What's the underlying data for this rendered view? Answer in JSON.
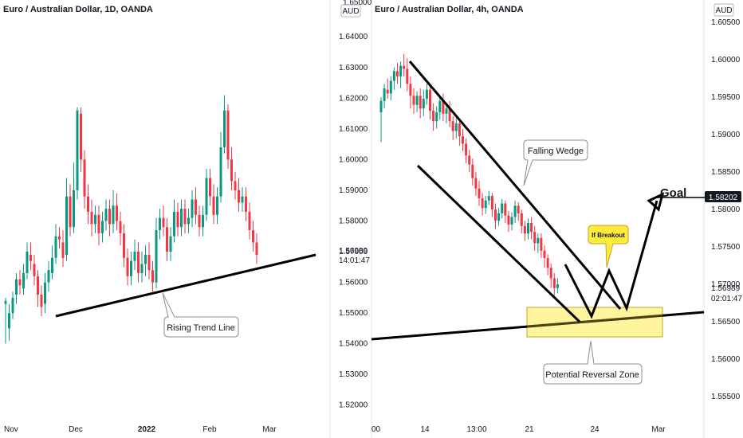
{
  "colors": {
    "up": "#089981",
    "down": "#f23645",
    "line": "#000000",
    "zone_fill": "#fff59d",
    "zone_stroke": "#c9a227",
    "callout_yellow": "#ffeb3b",
    "label_bg": "#131722"
  },
  "chart_data": [
    {
      "type": "candlestick",
      "title": "Euro / Australian Dollar, 1D, OANDA",
      "currency": "AUD",
      "ylim": [
        1.515,
        1.652
      ],
      "y_ticks": [
        "1.64000",
        "1.63000",
        "1.62000",
        "1.61000",
        "1.60000",
        "1.59000",
        "1.58000",
        "1.57000",
        "1.56000",
        "1.55000",
        "1.54000",
        "1.53000",
        "1.52000"
      ],
      "y_ticks_top_partial": "1.65000",
      "x_ticks": [
        "Nov",
        "Dec",
        "2022",
        "Feb",
        "Mar"
      ],
      "last_price_label": "1.56989",
      "countdown_label": "14:01:47",
      "candles": [
        [
          1.553,
          1.554,
          1.555,
          1.54
        ],
        [
          1.545,
          1.55,
          1.553,
          1.541
        ],
        [
          1.55,
          1.555,
          1.557,
          1.548
        ],
        [
          1.556,
          1.561,
          1.563,
          1.553
        ],
        [
          1.561,
          1.559,
          1.564,
          1.556
        ],
        [
          1.558,
          1.563,
          1.566,
          1.556
        ],
        [
          1.563,
          1.57,
          1.573,
          1.561
        ],
        [
          1.569,
          1.567,
          1.573,
          1.564
        ],
        [
          1.566,
          1.562,
          1.569,
          1.559
        ],
        [
          1.562,
          1.556,
          1.564,
          1.552
        ],
        [
          1.556,
          1.552,
          1.559,
          1.549
        ],
        [
          1.553,
          1.56,
          1.563,
          1.55
        ],
        [
          1.56,
          1.564,
          1.567,
          1.557
        ],
        [
          1.563,
          1.568,
          1.572,
          1.561
        ],
        [
          1.568,
          1.575,
          1.579,
          1.566
        ],
        [
          1.575,
          1.574,
          1.578,
          1.571
        ],
        [
          1.573,
          1.568,
          1.577,
          1.565
        ],
        [
          1.569,
          1.588,
          1.594,
          1.567
        ],
        [
          1.588,
          1.578,
          1.592,
          1.575
        ],
        [
          1.578,
          1.59,
          1.599,
          1.576
        ],
        [
          1.59,
          1.616,
          1.617,
          1.587
        ],
        [
          1.615,
          1.6,
          1.617,
          1.596
        ],
        [
          1.6,
          1.588,
          1.603,
          1.584
        ],
        [
          1.588,
          1.583,
          1.592,
          1.579
        ],
        [
          1.583,
          1.579,
          1.587,
          1.575
        ],
        [
          1.579,
          1.582,
          1.585,
          1.576
        ],
        [
          1.582,
          1.576,
          1.585,
          1.572
        ],
        [
          1.576,
          1.58,
          1.583,
          1.573
        ],
        [
          1.58,
          1.584,
          1.587,
          1.577
        ],
        [
          1.584,
          1.579,
          1.587,
          1.575
        ],
        [
          1.579,
          1.585,
          1.59,
          1.576
        ],
        [
          1.585,
          1.58,
          1.589,
          1.577
        ],
        [
          1.58,
          1.576,
          1.583,
          1.572
        ],
        [
          1.576,
          1.568,
          1.579,
          1.565
        ],
        [
          1.568,
          1.562,
          1.571,
          1.559
        ],
        [
          1.562,
          1.567,
          1.57,
          1.559
        ],
        [
          1.567,
          1.57,
          1.574,
          1.564
        ],
        [
          1.57,
          1.563,
          1.573,
          1.56
        ],
        [
          1.563,
          1.566,
          1.57,
          1.56
        ],
        [
          1.566,
          1.569,
          1.572,
          1.562
        ],
        [
          1.569,
          1.564,
          1.573,
          1.561
        ],
        [
          1.564,
          1.56,
          1.567,
          1.557
        ],
        [
          1.56,
          1.577,
          1.581,
          1.558
        ],
        [
          1.577,
          1.581,
          1.584,
          1.574
        ],
        [
          1.581,
          1.578,
          1.585,
          1.575
        ],
        [
          1.578,
          1.57,
          1.581,
          1.567
        ],
        [
          1.57,
          1.575,
          1.578,
          1.567
        ],
        [
          1.575,
          1.583,
          1.587,
          1.573
        ],
        [
          1.583,
          1.578,
          1.586,
          1.575
        ],
        [
          1.578,
          1.584,
          1.587,
          1.575
        ],
        [
          1.584,
          1.579,
          1.587,
          1.576
        ],
        [
          1.579,
          1.581,
          1.584,
          1.576
        ],
        [
          1.581,
          1.587,
          1.59,
          1.578
        ],
        [
          1.587,
          1.582,
          1.591,
          1.579
        ],
        [
          1.582,
          1.578,
          1.585,
          1.575
        ],
        [
          1.578,
          1.582,
          1.585,
          1.575
        ],
        [
          1.582,
          1.594,
          1.597,
          1.58
        ],
        [
          1.594,
          1.588,
          1.597,
          1.585
        ],
        [
          1.588,
          1.582,
          1.592,
          1.579
        ],
        [
          1.582,
          1.588,
          1.591,
          1.579
        ],
        [
          1.588,
          1.604,
          1.609,
          1.586
        ],
        [
          1.604,
          1.616,
          1.621,
          1.602
        ],
        [
          1.616,
          1.6,
          1.618,
          1.597
        ],
        [
          1.6,
          1.593,
          1.604,
          1.59
        ],
        [
          1.593,
          1.59,
          1.596,
          1.587
        ],
        [
          1.59,
          1.586,
          1.594,
          1.583
        ],
        [
          1.586,
          1.588,
          1.591,
          1.583
        ],
        [
          1.588,
          1.583,
          1.591,
          1.58
        ],
        [
          1.583,
          1.577,
          1.586,
          1.574
        ],
        [
          1.577,
          1.573,
          1.58,
          1.57
        ],
        [
          1.573,
          1.569,
          1.576,
          1.566
        ]
      ],
      "annotations": [
        {
          "type": "trendline",
          "from": {
            "index": 7,
            "price": 1.55
          },
          "to": {
            "index": 76,
            "price": 1.5692
          }
        },
        {
          "type": "callout",
          "text": "Rising Trend Line"
        }
      ]
    },
    {
      "type": "candlestick",
      "title": "Euro / Australian Dollar, 4h, OANDA",
      "currency": "AUD",
      "ylim": [
        1.5518,
        1.608
      ],
      "y_ticks": [
        "1.60500",
        "1.60000",
        "1.59500",
        "1.59000",
        "1.58500",
        "1.58000",
        "1.57500",
        "1.57000",
        "1.56500",
        "1.56000",
        "1.55500"
      ],
      "x_ticks": [
        "00",
        "14",
        "13:00",
        "21",
        "24",
        "Mar"
      ],
      "last_price_label": "1.56989",
      "countdown_label": "02:01:47",
      "goal_price_label": "1.58202",
      "candles": [
        [
          1.593,
          1.5945,
          1.595,
          1.589
        ],
        [
          1.5945,
          1.5962,
          1.5968,
          1.5935
        ],
        [
          1.596,
          1.5955,
          1.5975,
          1.5948
        ],
        [
          1.5955,
          1.5972,
          1.5978,
          1.5946
        ],
        [
          1.5972,
          1.5985,
          1.599,
          1.596
        ],
        [
          1.5985,
          1.5978,
          1.5996,
          1.5968
        ],
        [
          1.5978,
          1.5992,
          1.5998,
          1.5962
        ],
        [
          1.5992,
          1.5988,
          1.6008,
          1.5978
        ],
        [
          1.5988,
          1.5968,
          1.6002,
          1.5958
        ],
        [
          1.5968,
          1.5952,
          1.5978,
          1.5935
        ],
        [
          1.5952,
          1.594,
          1.5962,
          1.5928
        ],
        [
          1.594,
          1.5952,
          1.5958,
          1.593
        ],
        [
          1.5952,
          1.5935,
          1.5962,
          1.5922
        ],
        [
          1.5935,
          1.5948,
          1.596,
          1.5925
        ],
        [
          1.5948,
          1.596,
          1.5968,
          1.594
        ],
        [
          1.596,
          1.5932,
          1.5964,
          1.592
        ],
        [
          1.5932,
          1.5918,
          1.5942,
          1.5905
        ],
        [
          1.5918,
          1.593,
          1.5938,
          1.5908
        ],
        [
          1.593,
          1.5945,
          1.5952,
          1.592
        ],
        [
          1.5945,
          1.5928,
          1.5955,
          1.5918
        ],
        [
          1.5928,
          1.5935,
          1.594,
          1.5915
        ],
        [
          1.5935,
          1.5918,
          1.5945,
          1.591
        ],
        [
          1.5918,
          1.5905,
          1.5925,
          1.5893
        ],
        [
          1.5905,
          1.5915,
          1.5922,
          1.5895
        ],
        [
          1.5915,
          1.5898,
          1.592,
          1.5885
        ],
        [
          1.5898,
          1.5888,
          1.5908,
          1.5878
        ],
        [
          1.5888,
          1.5872,
          1.5895,
          1.5862
        ],
        [
          1.5872,
          1.586,
          1.588,
          1.585
        ],
        [
          1.586,
          1.5842,
          1.5868,
          1.5832
        ],
        [
          1.5842,
          1.5828,
          1.585,
          1.5818
        ],
        [
          1.5828,
          1.5815,
          1.5838,
          1.5805
        ],
        [
          1.5815,
          1.5802,
          1.5822,
          1.5792
        ],
        [
          1.5802,
          1.5812,
          1.5818,
          1.5794
        ],
        [
          1.5812,
          1.5818,
          1.5825,
          1.5806
        ],
        [
          1.5818,
          1.58,
          1.5822,
          1.579
        ],
        [
          1.58,
          1.5785,
          1.5808,
          1.5774
        ],
        [
          1.5785,
          1.5795,
          1.5802,
          1.5778
        ],
        [
          1.5795,
          1.5808,
          1.5814,
          1.5788
        ],
        [
          1.5808,
          1.5792,
          1.5812,
          1.5782
        ],
        [
          1.5792,
          1.578,
          1.5798,
          1.577
        ],
        [
          1.578,
          1.579,
          1.5796,
          1.5772
        ],
        [
          1.579,
          1.5805,
          1.5812,
          1.5782
        ],
        [
          1.5805,
          1.5795,
          1.581,
          1.5785
        ],
        [
          1.5795,
          1.5778,
          1.58,
          1.5768
        ],
        [
          1.5778,
          1.5768,
          1.5785,
          1.5758
        ],
        [
          1.5768,
          1.5782,
          1.5788,
          1.576
        ],
        [
          1.5782,
          1.577,
          1.579,
          1.576
        ],
        [
          1.577,
          1.5755,
          1.5778,
          1.5745
        ],
        [
          1.5755,
          1.5762,
          1.5768,
          1.5742
        ],
        [
          1.5762,
          1.5745,
          1.5768,
          1.5735
        ],
        [
          1.5745,
          1.5735,
          1.5752,
          1.5722
        ],
        [
          1.5735,
          1.5722,
          1.574,
          1.5712
        ],
        [
          1.5722,
          1.5708,
          1.5728,
          1.5695
        ],
        [
          1.5708,
          1.5695,
          1.5715,
          1.5685
        ],
        [
          1.5695,
          1.57,
          1.5708,
          1.5688
        ]
      ],
      "annotations": [
        {
          "type": "callout",
          "text": "Falling Wedge"
        },
        {
          "type": "callout",
          "text": "If Breakout"
        },
        {
          "type": "callout",
          "text": "Potential Reversal Zone"
        },
        {
          "type": "label",
          "text": "Goal"
        }
      ]
    }
  ]
}
